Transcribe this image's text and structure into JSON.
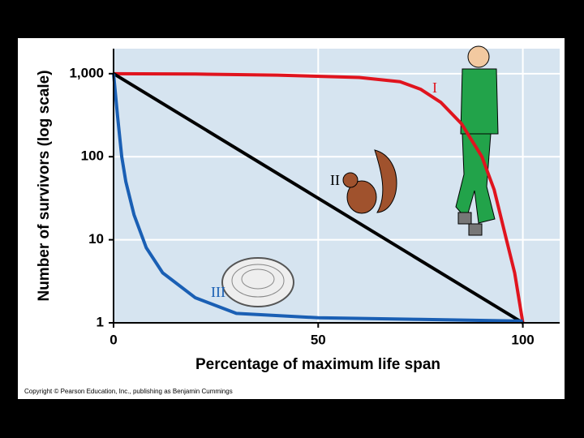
{
  "chart_data": {
    "type": "line",
    "x_label": "Percentage of maximum life span",
    "y_label": "Number of survivors (log scale)",
    "y_scale": "log",
    "xlim": [
      0,
      109
    ],
    "ylim": [
      1,
      2000
    ],
    "xticks": [
      0,
      50,
      100
    ],
    "yticks": [
      1,
      10,
      100,
      {
        "value": 1000,
        "label": "1,000"
      }
    ],
    "grid": true,
    "series": [
      {
        "name": "I",
        "color": "#e0141e",
        "x": [
          0,
          20,
          40,
          60,
          70,
          75,
          80,
          85,
          90,
          93,
          96,
          98,
          100
        ],
        "values": [
          1000,
          990,
          960,
          900,
          800,
          650,
          450,
          250,
          100,
          40,
          10,
          4,
          1
        ]
      },
      {
        "name": "II",
        "color": "#000000",
        "x": [
          0,
          100
        ],
        "values": [
          1000,
          1
        ]
      },
      {
        "name": "III",
        "color": "#1a5fb4",
        "x": [
          0,
          1,
          2,
          3,
          5,
          8,
          12,
          20,
          30,
          50,
          75,
          100
        ],
        "values": [
          1000,
          300,
          100,
          50,
          20,
          8,
          4,
          2,
          1.3,
          1.15,
          1.1,
          1.05
        ]
      }
    ],
    "copyright": "Copyright © Pearson Education, Inc., publishing as Benjamin Cummings"
  }
}
